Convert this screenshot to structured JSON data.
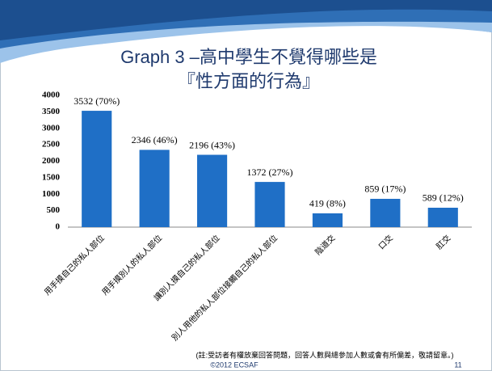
{
  "chart_data": {
    "type": "bar",
    "title": [
      "Graph 3 –高中學生不覺得哪些是",
      "『性方面的行為』"
    ],
    "categories": [
      "用手摸自己的私人部位",
      "用手摸別人的私人部位",
      "讓別人摸自己的私人部位",
      "別人用他的私人部位接觸自己的私人部位",
      "陰道交",
      "口交",
      "肛交"
    ],
    "values": [
      3532,
      2346,
      2196,
      1372,
      419,
      859,
      589
    ],
    "value_labels": [
      "3532 (70%)",
      "2346 (46%)",
      "2196 (43%)",
      "1372 (27%)",
      "419 (8%)",
      "859 (17%)",
      "589 (12%)"
    ],
    "color": "#1f6fc6",
    "ylim": [
      0,
      4000
    ],
    "yticks": [
      0,
      500,
      1000,
      1500,
      2000,
      2500,
      3000,
      3500,
      4000
    ],
    "grid": false,
    "note": "(註:受訪者有權放棄回答問題，回答人數與總參加人數或會有所偏差，敬請留意。)",
    "footer": "©2012 ECSAF",
    "page_number": 11
  }
}
